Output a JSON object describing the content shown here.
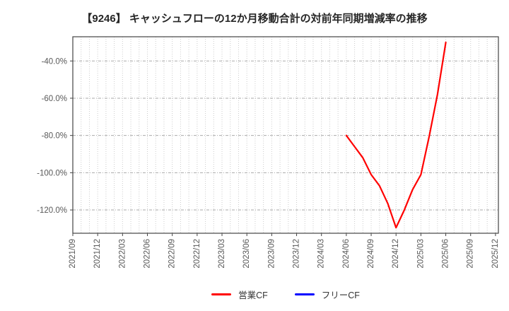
{
  "title": "【9246】 キャッシュフローの12か月移動合計の対前年同期増減率の推移",
  "colors": {
    "background": "#ffffff",
    "title_text": "#262626",
    "tick_text": "#595959",
    "plot_border": "#444444",
    "grid_vertical": "#cccccc",
    "grid_horizontal": "#aaaaaa",
    "legend_text": "#333333",
    "operating_cf": "#ff0000",
    "free_cf": "#0000ff"
  },
  "chart_data": {
    "type": "line",
    "title": "【9246】 キャッシュフローの12か月移動合計の対前年同期増減率の推移",
    "x_axis": {
      "start_month": "2021/09",
      "end_month": "2025/12",
      "tick_labels": [
        "2021/09",
        "2021/12",
        "2022/03",
        "2022/06",
        "2022/09",
        "2022/12",
        "2023/03",
        "2023/06",
        "2023/09",
        "2023/12",
        "2024/03",
        "2024/06",
        "2024/09",
        "2024/12",
        "2025/03",
        "2025/06",
        "2025/09",
        "2025/12"
      ],
      "minor_grid_interval_months": 1
    },
    "y_axis": {
      "unit": "%",
      "tick_labels": [
        "-40.0%",
        "-60.0%",
        "-80.0%",
        "-100.0%",
        "-120.0%"
      ],
      "tick_values": [
        -40,
        -60,
        -80,
        -100,
        -120
      ],
      "ylim": [
        -132.5,
        -27
      ]
    },
    "grid": {
      "vertical": "dotted monthly",
      "horizontal": "dashed at major y ticks"
    },
    "legend_position": "bottom-center",
    "series": [
      {
        "name": "営業CF",
        "color": "#ff0000",
        "x": [
          "2024/06",
          "2024/07",
          "2024/08",
          "2024/09",
          "2024/10",
          "2024/11",
          "2024/12",
          "2025/01",
          "2025/02",
          "2025/03",
          "2025/04",
          "2025/05",
          "2025/06"
        ],
        "values": [
          -80,
          -86,
          -92,
          -101,
          -107,
          -116.5,
          -129.5,
          -120,
          -109,
          -101,
          -80.5,
          -58,
          -30
        ]
      },
      {
        "name": "フリーCF",
        "color": "#0000ff",
        "x": [],
        "values": []
      }
    ]
  }
}
